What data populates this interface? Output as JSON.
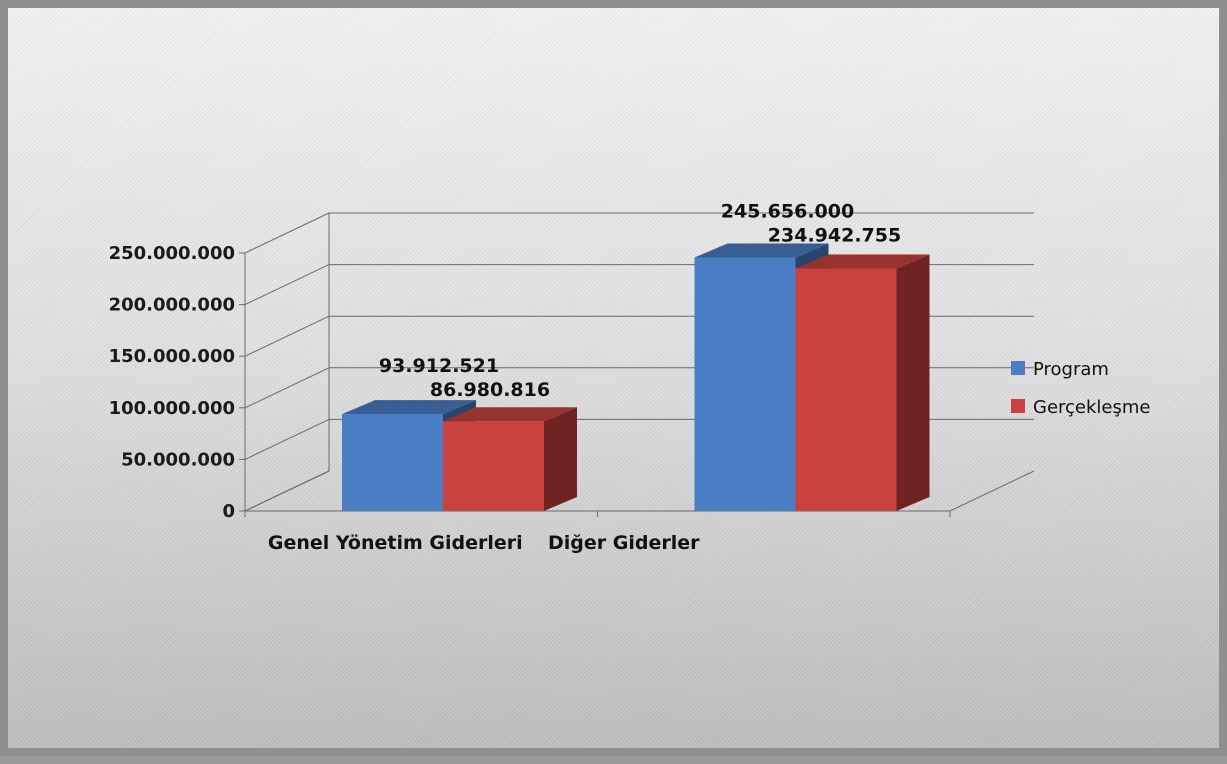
{
  "chart_data": {
    "type": "bar",
    "title": "",
    "xlabel": "",
    "ylabel": "",
    "three_d": true,
    "categories": [
      "Genel Yönetim Giderleri",
      "Diğer Giderler"
    ],
    "series": [
      {
        "name": "Program",
        "values": [
          93912521,
          245656000
        ],
        "labels": [
          "93.912.521",
          "245.656.000"
        ],
        "color": "#4a7ec4"
      },
      {
        "name": "Gerçekleşme",
        "values": [
          86980816,
          234942755
        ],
        "labels": [
          "86.980.816",
          "234.942.755"
        ],
        "color": "#c9423f"
      }
    ],
    "ylim": [
      0,
      250000000
    ],
    "yticks": [
      0,
      50000000,
      100000000,
      150000000,
      200000000,
      250000000
    ],
    "ytick_labels": [
      "0",
      "50.000.000",
      "100.000.000",
      "150.000.000",
      "200.000.000",
      "250.000.000"
    ],
    "grid": true,
    "legend_position": "right"
  }
}
